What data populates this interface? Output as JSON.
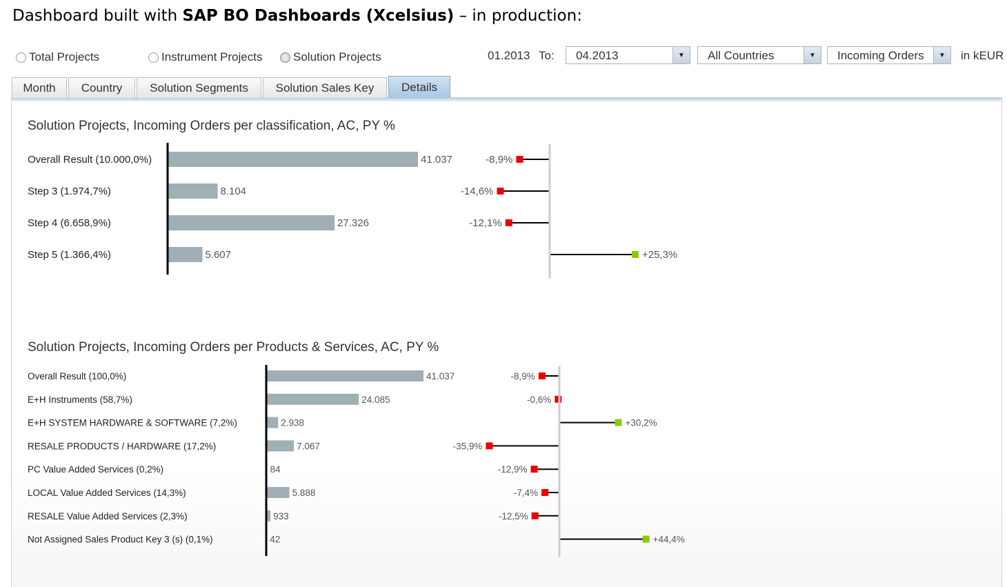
{
  "heading": {
    "prefix": "Dashboard built with ",
    "bold": "SAP BO Dashboards (Xcelsius)",
    "suffix": " – in production:"
  },
  "radios": [
    {
      "label": "Total Projects",
      "selected": false
    },
    {
      "label": "Instrument Projects",
      "selected": false
    },
    {
      "label": "Solution Projects",
      "selected": true
    }
  ],
  "filters": {
    "from_date": "01.2013",
    "to_label": "To:",
    "to_date": "04.2013",
    "country": "All Countries",
    "measure": "Incoming Orders",
    "unit": "in kEUR",
    "dropdown_arrow": "▼"
  },
  "tabs": [
    {
      "label": "Month",
      "active": false
    },
    {
      "label": "Country",
      "active": false
    },
    {
      "label": "Solution Segments",
      "active": false
    },
    {
      "label": "Solution Sales Key",
      "active": false
    },
    {
      "label": "Details",
      "active": true
    }
  ],
  "colors": {
    "bar": "#a0aeb6",
    "negative": "#ee0000",
    "positive": "#88cc00",
    "active_tab": "#b7d0e8"
  },
  "chart_data": [
    {
      "type": "bar",
      "title": "Solution Projects, Incoming Orders per classification, AC, PY %",
      "categories": [
        "Overall Result (10.000,0%)",
        "Step 3 (1.974,7%)",
        "Step 4 (6.658,9%)",
        "Step 5 (1.366,4%)"
      ],
      "values": [
        41037,
        8104,
        27326,
        5607
      ],
      "value_labels": [
        "41.037",
        "8.104",
        "27.326",
        "5.607"
      ],
      "py_change_pct": [
        -8.9,
        -14.6,
        -12.1,
        25.3
      ],
      "py_change_labels": [
        "-8,9%",
        "-14,6%",
        "-12,1%",
        "+25,3%"
      ]
    },
    {
      "type": "bar",
      "title": "Solution Projects, Incoming Orders per Products & Services, AC, PY %",
      "categories": [
        "Overall Result (100,0%)",
        "E+H Instruments (58,7%)",
        "E+H SYSTEM HARDWARE & SOFTWARE (7,2%)",
        "RESALE PRODUCTS / HARDWARE (17,2%)",
        "PC Value Added Services (0,2%)",
        "LOCAL Value Added Services (14,3%)",
        "RESALE Value Added Services (2,3%)",
        "Not Assigned Sales Product Key 3 (s) (0,1%)"
      ],
      "values": [
        41037,
        24085,
        2938,
        7067,
        84,
        5888,
        933,
        42
      ],
      "value_labels": [
        "41.037",
        "24.085",
        "2.938",
        "7.067",
        "84",
        "5.888",
        "933",
        "42"
      ],
      "py_change_pct": [
        -8.9,
        -0.6,
        30.2,
        -35.9,
        -12.9,
        -7.4,
        -12.5,
        44.4
      ],
      "py_change_labels": [
        "-8,9%",
        "-0,6%",
        "+30,2%",
        "-35,9%",
        "-12,9%",
        "-7,4%",
        "-12,5%",
        "+44,4%"
      ]
    }
  ]
}
